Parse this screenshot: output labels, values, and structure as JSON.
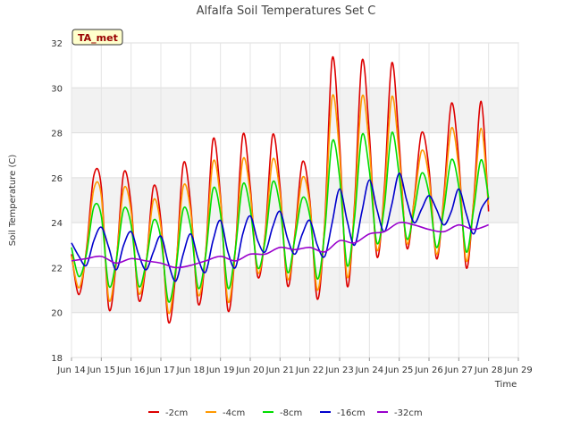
{
  "chart_data": {
    "type": "line",
    "title": "Alfalfa Soil Temperatures Set C",
    "xlabel": "Time",
    "ylabel": "Soil Temperature (C)",
    "xlim": [
      14,
      29
    ],
    "ylim": [
      18,
      32
    ],
    "x_tick_values": [
      14,
      15,
      16,
      17,
      18,
      19,
      20,
      21,
      22,
      23,
      24,
      25,
      26,
      27,
      28,
      29
    ],
    "x_tick_labels": [
      "Jun 14",
      "Jun 15",
      "Jun 16",
      "Jun 17",
      "Jun 18",
      "Jun 19",
      "Jun 20",
      "Jun 21",
      "Jun 22",
      "Jun 23",
      "Jun 24",
      "Jun 25",
      "Jun 26",
      "Jun 27",
      "Jun 28",
      "Jun 29"
    ],
    "y_tick_values": [
      18,
      20,
      22,
      24,
      26,
      28,
      30,
      32
    ],
    "y_tick_labels": [
      "18",
      "20",
      "22",
      "24",
      "26",
      "28",
      "30",
      "32"
    ],
    "grid": true,
    "legend_position": "bottom",
    "badge_label": "TA_met",
    "series": [
      {
        "name": "-2cm",
        "color": "#dd0000",
        "x": [
          14.0,
          14.25,
          14.5,
          14.75,
          15.0,
          15.25,
          15.5,
          15.75,
          16.0,
          16.25,
          16.5,
          16.75,
          17.0,
          17.25,
          17.5,
          17.75,
          18.0,
          18.25,
          18.5,
          18.75,
          19.0,
          19.25,
          19.5,
          19.75,
          20.0,
          20.25,
          20.5,
          20.75,
          21.0,
          21.25,
          21.5,
          21.75,
          22.0,
          22.25,
          22.5,
          22.75,
          23.0,
          23.25,
          23.5,
          23.75,
          24.0,
          24.25,
          24.5,
          24.75,
          25.0,
          25.25,
          25.5,
          25.75,
          26.0,
          26.25,
          26.5,
          26.75,
          27.0,
          27.25,
          27.5,
          27.75,
          28.0
        ],
        "y": [
          22.6,
          20.8,
          22.8,
          26.1,
          25.6,
          20.2,
          22.2,
          26.2,
          24.8,
          20.6,
          22.1,
          25.6,
          24.1,
          19.6,
          21.8,
          26.6,
          24.8,
          20.4,
          22.6,
          27.7,
          25.2,
          20.1,
          22.8,
          27.9,
          25.6,
          21.6,
          23.5,
          27.9,
          25.6,
          21.2,
          23.5,
          26.7,
          25.0,
          20.6,
          24.0,
          31.3,
          27.5,
          21.2,
          24.8,
          31.2,
          27.9,
          22.5,
          25.5,
          31.1,
          27.5,
          22.9,
          25.0,
          28.0,
          26.4,
          22.4,
          25.2,
          29.3,
          26.8,
          22.0,
          25.0,
          29.4,
          24.5
        ]
      },
      {
        "name": "-4cm",
        "color": "#ff9900",
        "x": [
          14.0,
          14.25,
          14.5,
          14.75,
          15.0,
          15.25,
          15.5,
          15.75,
          16.0,
          16.25,
          16.5,
          16.75,
          17.0,
          17.25,
          17.5,
          17.75,
          18.0,
          18.25,
          18.5,
          18.75,
          19.0,
          19.25,
          19.5,
          19.75,
          20.0,
          20.25,
          20.5,
          20.75,
          21.0,
          21.25,
          21.5,
          21.75,
          22.0,
          22.25,
          22.5,
          22.75,
          23.0,
          23.25,
          23.5,
          23.75,
          24.0,
          24.25,
          24.5,
          24.75,
          25.0,
          25.25,
          25.5,
          25.75,
          26.0,
          26.25,
          26.5,
          26.75,
          27.0,
          27.25,
          27.5,
          27.75,
          28.0
        ],
        "y": [
          22.5,
          21.1,
          22.7,
          25.5,
          25.2,
          20.6,
          22.3,
          25.5,
          24.5,
          20.9,
          22.2,
          25.0,
          23.8,
          20.0,
          22.0,
          25.6,
          24.5,
          20.8,
          22.6,
          26.7,
          25.0,
          20.5,
          22.8,
          26.8,
          25.3,
          21.8,
          23.4,
          26.8,
          25.3,
          21.5,
          23.4,
          26.0,
          24.8,
          21.0,
          23.9,
          29.6,
          27.0,
          21.6,
          24.6,
          29.6,
          27.3,
          22.8,
          25.2,
          29.6,
          27.0,
          23.1,
          24.9,
          27.2,
          26.0,
          22.6,
          25.0,
          28.2,
          26.4,
          22.3,
          24.9,
          28.2,
          24.8
        ]
      },
      {
        "name": "-8cm",
        "color": "#00dd00",
        "x": [
          14.0,
          14.25,
          14.5,
          14.75,
          15.0,
          15.25,
          15.5,
          15.75,
          16.0,
          16.25,
          16.5,
          16.75,
          17.0,
          17.25,
          17.5,
          17.75,
          18.0,
          18.25,
          18.5,
          18.75,
          19.0,
          19.25,
          19.5,
          19.75,
          20.0,
          20.25,
          20.5,
          20.75,
          21.0,
          21.25,
          21.5,
          21.75,
          22.0,
          22.25,
          22.5,
          22.75,
          23.0,
          23.25,
          23.5,
          23.75,
          24.0,
          24.25,
          24.5,
          24.75,
          25.0,
          25.25,
          25.5,
          25.75,
          26.0,
          26.25,
          26.5,
          26.75,
          27.0,
          27.25,
          27.5,
          27.75,
          28.0
        ],
        "y": [
          22.9,
          21.6,
          22.6,
          24.7,
          24.3,
          21.2,
          22.3,
          24.6,
          23.9,
          21.2,
          22.2,
          24.1,
          23.3,
          20.5,
          21.9,
          24.6,
          23.8,
          21.1,
          22.5,
          25.5,
          24.4,
          21.1,
          22.8,
          25.7,
          24.6,
          22.0,
          23.2,
          25.8,
          24.7,
          21.8,
          23.3,
          25.1,
          24.3,
          21.5,
          23.6,
          27.6,
          26.0,
          22.1,
          24.2,
          27.9,
          26.3,
          23.1,
          24.7,
          28.0,
          26.1,
          23.3,
          24.5,
          26.2,
          25.3,
          22.9,
          24.6,
          26.8,
          25.6,
          22.7,
          24.6,
          26.8,
          25.1
        ]
      },
      {
        "name": "-16cm",
        "color": "#0000cc",
        "x": [
          14.0,
          14.25,
          14.5,
          14.75,
          15.0,
          15.25,
          15.5,
          15.75,
          16.0,
          16.25,
          16.5,
          16.75,
          17.0,
          17.25,
          17.5,
          17.75,
          18.0,
          18.25,
          18.5,
          18.75,
          19.0,
          19.25,
          19.5,
          19.75,
          20.0,
          20.25,
          20.5,
          20.75,
          21.0,
          21.25,
          21.5,
          21.75,
          22.0,
          22.25,
          22.5,
          22.75,
          23.0,
          23.25,
          23.5,
          23.75,
          24.0,
          24.25,
          24.5,
          24.75,
          25.0,
          25.25,
          25.5,
          25.75,
          26.0,
          26.25,
          26.5,
          26.75,
          27.0,
          27.25,
          27.5,
          27.75,
          28.0
        ],
        "y": [
          23.1,
          22.5,
          22.1,
          23.2,
          23.8,
          22.9,
          21.9,
          23.0,
          23.6,
          22.6,
          21.9,
          22.7,
          23.4,
          22.2,
          21.4,
          22.6,
          23.5,
          22.4,
          21.8,
          23.2,
          24.1,
          22.7,
          22.0,
          23.5,
          24.3,
          23.2,
          22.7,
          23.8,
          24.5,
          23.3,
          22.6,
          23.5,
          24.1,
          23.0,
          22.5,
          24.0,
          25.5,
          24.1,
          23.0,
          24.5,
          25.9,
          24.6,
          23.6,
          24.8,
          26.2,
          25.0,
          24.0,
          24.6,
          25.2,
          24.6,
          23.9,
          24.5,
          25.5,
          24.4,
          23.5,
          24.6,
          25.1
        ]
      },
      {
        "name": "-32cm",
        "color": "#9900cc",
        "x": [
          14.0,
          14.5,
          15.0,
          15.5,
          16.0,
          16.5,
          17.0,
          17.5,
          18.0,
          18.5,
          19.0,
          19.5,
          20.0,
          20.5,
          21.0,
          21.5,
          22.0,
          22.5,
          23.0,
          23.5,
          24.0,
          24.5,
          25.0,
          25.5,
          26.0,
          26.5,
          27.0,
          27.5,
          28.0
        ],
        "y": [
          22.3,
          22.4,
          22.5,
          22.2,
          22.4,
          22.3,
          22.2,
          22.0,
          22.1,
          22.3,
          22.5,
          22.3,
          22.6,
          22.6,
          22.9,
          22.8,
          22.9,
          22.7,
          23.2,
          23.1,
          23.5,
          23.6,
          24.0,
          23.9,
          23.7,
          23.6,
          23.9,
          23.7,
          23.9
        ]
      }
    ]
  }
}
